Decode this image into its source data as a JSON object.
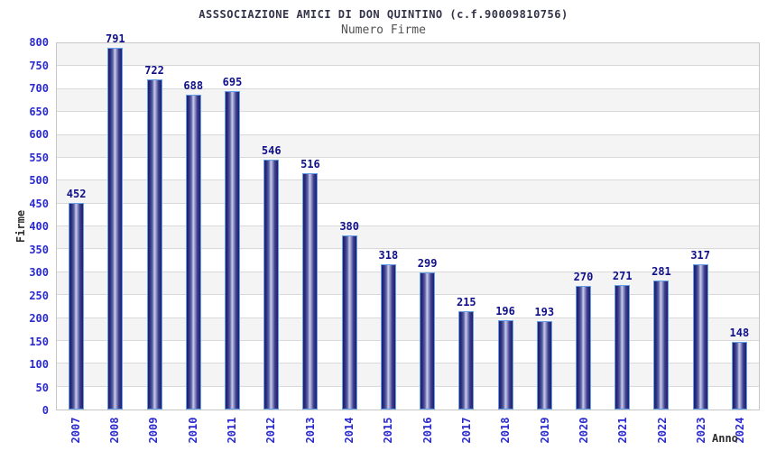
{
  "chart_data": {
    "type": "bar",
    "title": "ASSSOCIAZIONE AMICI DI DON QUINTINO (c.f.90009810756)",
    "subtitle": "Numero Firme",
    "xlabel": "Anno",
    "ylabel": "Firme",
    "categories": [
      "2007",
      "2008",
      "2009",
      "2010",
      "2011",
      "2012",
      "2013",
      "2014",
      "2015",
      "2016",
      "2017",
      "2018",
      "2019",
      "2020",
      "2021",
      "2022",
      "2023",
      "2024"
    ],
    "values": [
      452,
      791,
      722,
      688,
      695,
      546,
      516,
      380,
      318,
      299,
      215,
      196,
      193,
      270,
      271,
      281,
      317,
      148
    ],
    "ylim": [
      0,
      800
    ],
    "ytick_step": 50,
    "grid": true,
    "legend": "none",
    "bands_alternating": true,
    "colors": {
      "title": "#33334a",
      "subtitle": "#525252",
      "tick_label": "#2a2ad0",
      "value_label": "#10108a",
      "axis_title": "#2e2e2e",
      "band_gray": "#f4f4f4",
      "grid_line": "#d9d9d9",
      "plot_border": "#c7c7c7",
      "bar_edge": "#20206e",
      "bar_center": "#c9cde8",
      "bar_outline": "#64a0e8"
    }
  }
}
